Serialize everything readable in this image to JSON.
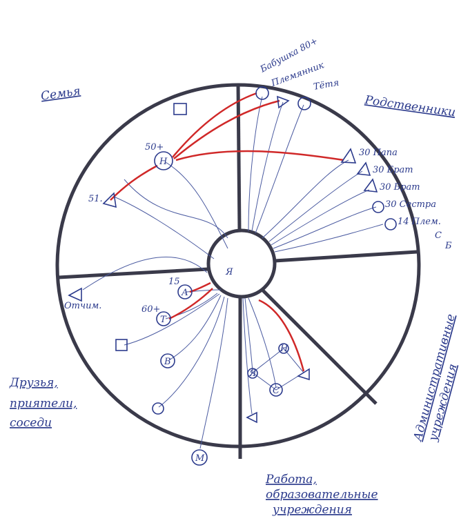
{
  "sectors": [
    {
      "lines": [
        "Семья"
      ]
    },
    {
      "lines": [
        "Родственники"
      ]
    },
    {
      "lines": [
        "Административные",
        "учреждения"
      ]
    },
    {
      "lines": [
        "Работа,",
        "образовательные",
        "учреждения"
      ]
    },
    {
      "lines": [
        "Друзья,",
        "приятели,",
        "соседи"
      ]
    }
  ],
  "nodes": [
    "Н",
    "50+",
    "51.",
    "Бабушка 80+",
    "Племянник",
    "Тётя",
    "30 Папа",
    "30 Брат",
    "30 Брат",
    "30 Сестра",
    "14 Плем.",
    "С",
    "Б",
    "Я",
    "15",
    "А",
    "60+",
    "Т",
    "В",
    "М",
    "Отчим.",
    "Я",
    "Н",
    "С"
  ]
}
